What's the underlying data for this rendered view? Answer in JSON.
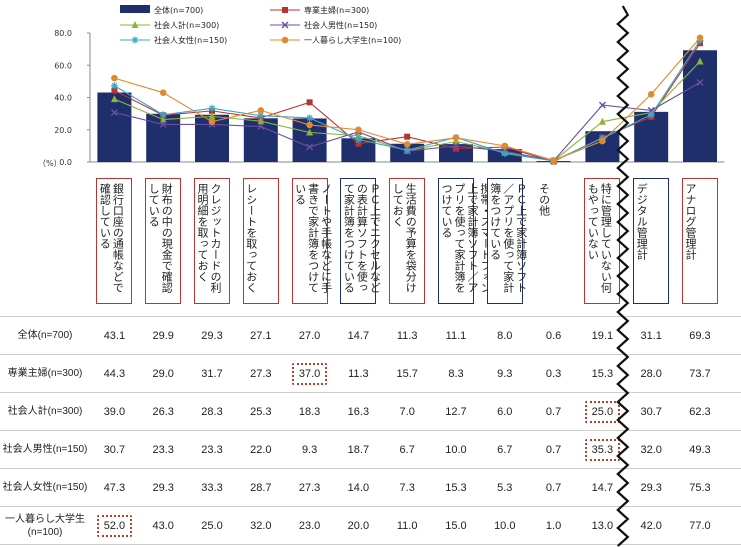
{
  "chart_data": {
    "type": "bar",
    "ylabel": "（%）",
    "ylim": [
      0,
      80
    ],
    "yticks": [
      "80.0",
      "60.0",
      "40.0",
      "20.0",
      "0.0"
    ],
    "categories": [
      "銀行口座の通帳などで確認している",
      "財布の中の現金で確認している",
      "クレジットカードの利用明細を取っておく",
      "レシートを取っておく",
      "ノートや手帳などに手書きで家計簿をつけている",
      "ＰＣ上でエクセルなどの表計算ソフトを使って家計簿をつけている",
      "生活費の予算を袋分けしておく",
      "携帯・スマートフォン上で家計簿ソフト／アプリを使って家計簿をつけている",
      "ＰＣ上で家計簿ソフト／アプリを使って家計簿をつけている",
      "その他",
      "特に管理していない何もやっていない",
      "デジタル管理計",
      "アナログ管理計"
    ],
    "series": [
      {
        "name": "全体(n=700)",
        "kind": "bar",
        "color": "#1f2f6b",
        "values": [
          43.1,
          29.9,
          29.3,
          27.1,
          27.0,
          14.7,
          11.3,
          11.1,
          8.0,
          0.6,
          19.1,
          31.1,
          69.3
        ]
      },
      {
        "name": "専業主婦(n=300)",
        "kind": "line",
        "color": "#b83232",
        "marker": "square",
        "values": [
          44.3,
          29.0,
          31.7,
          27.3,
          37.0,
          11.3,
          15.7,
          8.3,
          9.3,
          0.3,
          15.3,
          28.0,
          73.7
        ]
      },
      {
        "name": "社会人計(n=300)",
        "kind": "line",
        "color": "#8db33a",
        "marker": "triangle",
        "values": [
          39.0,
          26.3,
          28.3,
          25.3,
          18.3,
          16.3,
          7.0,
          12.7,
          6.0,
          0.7,
          25.0,
          30.7,
          62.3
        ]
      },
      {
        "name": "社会人男性(n=150)",
        "kind": "line",
        "color": "#6b4fa0",
        "marker": "x",
        "values": [
          30.7,
          23.3,
          23.3,
          22.0,
          9.3,
          18.7,
          6.7,
          10.0,
          6.7,
          0.7,
          35.3,
          32.0,
          49.3
        ]
      },
      {
        "name": "社会人女性(n=150)",
        "kind": "line",
        "color": "#3ca6c8",
        "marker": "star",
        "values": [
          47.3,
          29.3,
          33.3,
          28.7,
          27.3,
          14.0,
          7.3,
          15.3,
          5.3,
          0.7,
          14.7,
          29.3,
          75.3
        ]
      },
      {
        "name": "一人暮らし大学生(n=100)",
        "kind": "line",
        "color": "#e08a2e",
        "marker": "circle",
        "values": [
          52.0,
          43.0,
          25.0,
          32.0,
          23.0,
          20.0,
          11.0,
          15.0,
          10.0,
          1.0,
          13.0,
          42.0,
          77.0
        ]
      }
    ],
    "category_box": [
      "red",
      "red",
      "red",
      "red",
      "red",
      "blue",
      "red",
      "blue",
      "blue",
      "none",
      "red",
      "blue",
      "red"
    ],
    "table": {
      "rows": [
        {
          "label": "全体(n=700)",
          "series": 0,
          "highlight": []
        },
        {
          "label": "専業主婦(n=300)",
          "series": 1,
          "highlight": [
            4
          ]
        },
        {
          "label": "社会人計(n=300)",
          "series": 2,
          "highlight": [
            10
          ]
        },
        {
          "label": "社会人男性(n=150)",
          "series": 3,
          "highlight": [
            10
          ]
        },
        {
          "label": "社会人女性(n=150)",
          "series": 4,
          "highlight": []
        },
        {
          "label": "一人暮らし大学生(n=100)",
          "series": 5,
          "highlight": [
            0
          ]
        }
      ]
    },
    "legend_position": "top",
    "grid": false
  }
}
